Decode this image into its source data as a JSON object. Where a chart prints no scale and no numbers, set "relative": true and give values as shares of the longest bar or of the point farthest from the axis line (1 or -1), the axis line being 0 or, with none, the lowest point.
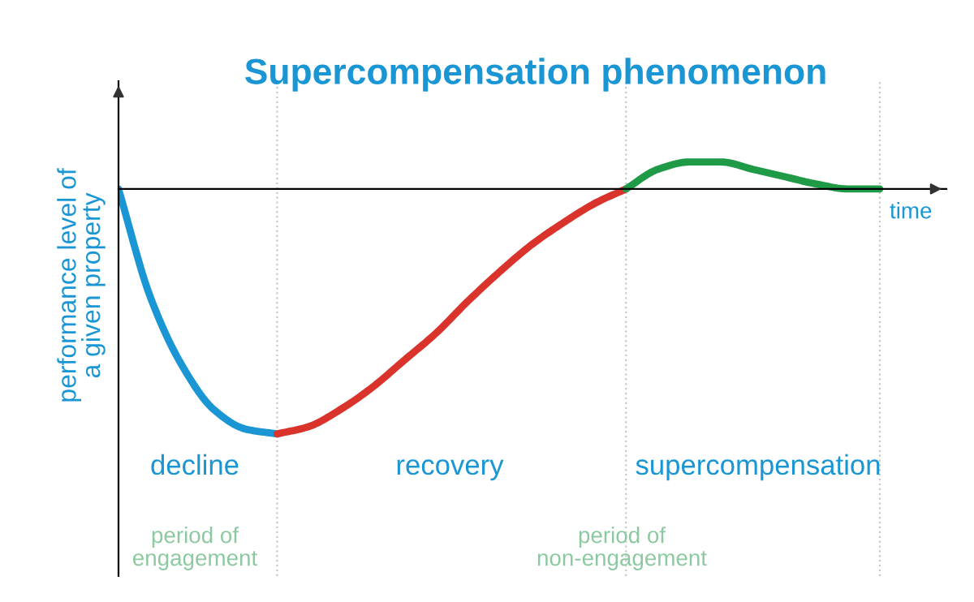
{
  "chart_data": {
    "type": "line",
    "title": "Supercompensation phenomenon",
    "xlabel": "time",
    "ylabel": "performance level of\na given property",
    "relative": true,
    "grid": "x",
    "legend": false,
    "marker": "none",
    "line_style": "solid",
    "categories": [
      null,
      null,
      null,
      null,
      null,
      null,
      null,
      null,
      null,
      null,
      null,
      null,
      null,
      null,
      null,
      null,
      null,
      null,
      null,
      null,
      null,
      null,
      null,
      null,
      null
    ],
    "series": [
      {
        "color": "#1a96d4",
        "values": [
          0,
          -0.44,
          -0.72,
          -0.9,
          -0.98,
          -1,
          null,
          null,
          null,
          null,
          null,
          null,
          null,
          null,
          null,
          null,
          null,
          null,
          null,
          null,
          null,
          null,
          null,
          null,
          null
        ]
      },
      {
        "color": "#d9332b",
        "values": [
          null,
          null,
          null,
          null,
          null,
          -1,
          -0.97,
          -0.9,
          -0.81,
          -0.7,
          -0.59,
          -0.46,
          -0.34,
          -0.23,
          -0.14,
          -0.06,
          0,
          null,
          null,
          null,
          null,
          null,
          null,
          null,
          null
        ]
      },
      {
        "color": "#1f9a46",
        "values": [
          null,
          null,
          null,
          null,
          null,
          null,
          null,
          null,
          null,
          null,
          null,
          null,
          null,
          null,
          null,
          null,
          0,
          0.08,
          0.11,
          0.11,
          0.08,
          0.05,
          0.02,
          0,
          0
        ]
      }
    ],
    "annotations": [
      "decline",
      "recovery",
      "supercompensation",
      "period of\nengagement",
      "period of\nnon-engagement"
    ]
  }
}
